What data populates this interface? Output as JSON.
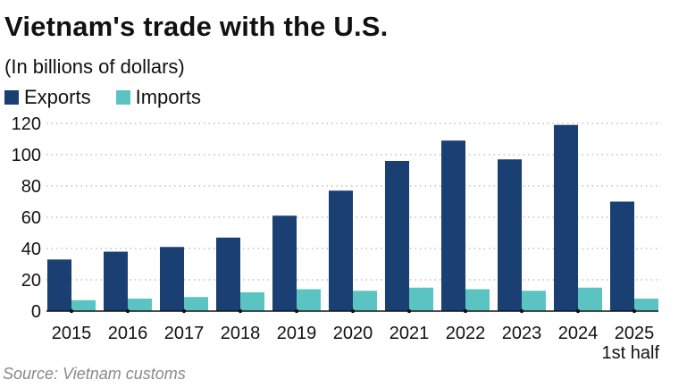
{
  "chart_data": {
    "type": "bar",
    "title": "Vietnam's trade with the U.S.",
    "subtitle": "(In billions of dollars)",
    "source": "Source: Vietnam customs",
    "categories": [
      "2015",
      "2016",
      "2017",
      "2018",
      "2019",
      "2020",
      "2021",
      "2022",
      "2023",
      "2024",
      "2025\n1st half"
    ],
    "series": [
      {
        "name": "Exports",
        "color": "#1a3f73",
        "values": [
          33,
          38,
          41,
          47,
          61,
          77,
          96,
          109,
          97,
          119,
          70
        ]
      },
      {
        "name": "Imports",
        "color": "#5bc4c2",
        "values": [
          7,
          8,
          9,
          12,
          14,
          13,
          15,
          14,
          13,
          15,
          8
        ]
      }
    ],
    "ylim": [
      0,
      120
    ],
    "yticks": [
      0,
      20,
      40,
      60,
      80,
      100,
      120
    ],
    "grid": true,
    "legend": "top-left"
  }
}
